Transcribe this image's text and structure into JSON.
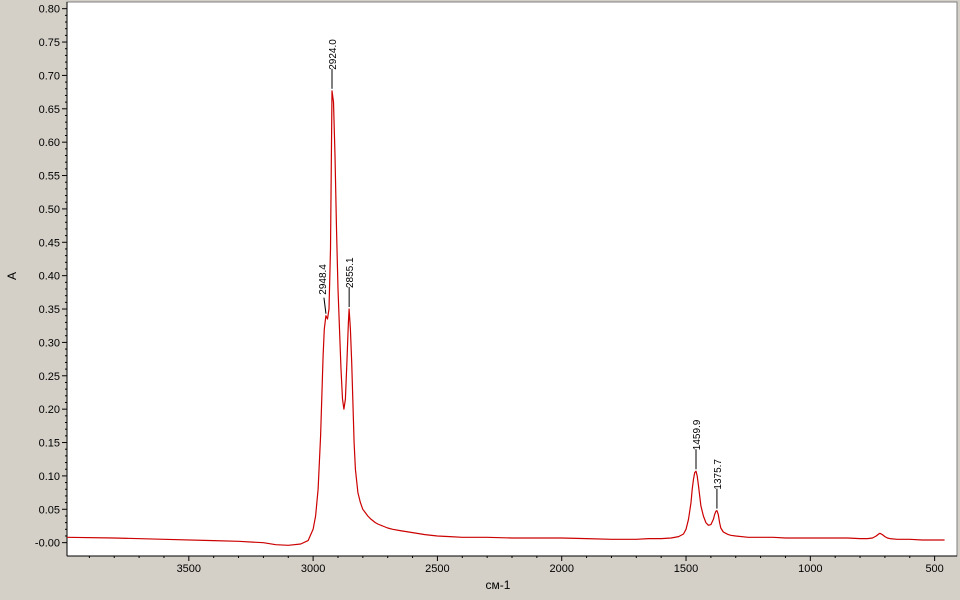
{
  "chart_data": {
    "type": "line",
    "title": "",
    "xlabel": "см-1",
    "ylabel": "A",
    "xlim": [
      3990,
      410
    ],
    "ylim": [
      -0.02,
      0.81
    ],
    "x_reversed": true,
    "grid": false,
    "x_ticks": [
      3500,
      3000,
      2500,
      2000,
      1500,
      1000,
      500
    ],
    "x_tick_labels": [
      "3500",
      "3000",
      "2500",
      "2000",
      "1500",
      "1000",
      "500"
    ],
    "y_ticks": [
      0.0,
      0.05,
      0.1,
      0.15,
      0.2,
      0.25,
      0.3,
      0.35,
      0.4,
      0.45,
      0.5,
      0.55,
      0.6,
      0.65,
      0.7,
      0.75,
      0.8
    ],
    "y_tick_labels": [
      "-0.00",
      "0.05",
      "0.10",
      "0.15",
      "0.20",
      "0.25",
      "0.30",
      "0.35",
      "0.40",
      "0.45",
      "0.50",
      "0.55",
      "0.60",
      "0.65",
      "0.70",
      "0.75",
      "0.80"
    ],
    "series": [
      {
        "color": "#cc0000",
        "x": [
          3990,
          3800,
          3600,
          3400,
          3300,
          3200,
          3150,
          3100,
          3050,
          3020,
          3000,
          2990,
          2980,
          2970,
          2960,
          2955,
          2948.4,
          2942,
          2936,
          2930,
          2924,
          2918,
          2912,
          2906,
          2900,
          2894,
          2888,
          2882,
          2876,
          2870,
          2864,
          2858,
          2855.1,
          2850,
          2845,
          2840,
          2835,
          2830,
          2820,
          2810,
          2800,
          2790,
          2780,
          2770,
          2760,
          2750,
          2740,
          2720,
          2700,
          2680,
          2650,
          2600,
          2550,
          2500,
          2450,
          2400,
          2300,
          2200,
          2100,
          2000,
          1900,
          1800,
          1750,
          1700,
          1650,
          1600,
          1560,
          1530,
          1510,
          1500,
          1490,
          1480,
          1475,
          1470,
          1465,
          1459.9,
          1455,
          1450,
          1445,
          1440,
          1430,
          1420,
          1410,
          1400,
          1390,
          1385,
          1380,
          1375.7,
          1370,
          1365,
          1360,
          1350,
          1340,
          1330,
          1320,
          1300,
          1250,
          1200,
          1150,
          1100,
          1050,
          1000,
          950,
          900,
          850,
          800,
          770,
          750,
          735,
          725,
          720,
          710,
          700,
          690,
          680,
          650,
          600,
          550,
          500,
          480,
          460
        ],
        "y": [
          0.008,
          0.007,
          0.005,
          0.003,
          0.002,
          0.0,
          -0.003,
          -0.004,
          -0.002,
          0.003,
          0.02,
          0.04,
          0.08,
          0.16,
          0.28,
          0.32,
          0.34,
          0.335,
          0.35,
          0.44,
          0.677,
          0.66,
          0.58,
          0.47,
          0.38,
          0.32,
          0.26,
          0.215,
          0.2,
          0.215,
          0.27,
          0.33,
          0.35,
          0.32,
          0.27,
          0.21,
          0.15,
          0.11,
          0.075,
          0.06,
          0.05,
          0.045,
          0.04,
          0.036,
          0.033,
          0.03,
          0.028,
          0.025,
          0.022,
          0.02,
          0.018,
          0.015,
          0.012,
          0.01,
          0.009,
          0.008,
          0.008,
          0.007,
          0.007,
          0.007,
          0.006,
          0.005,
          0.005,
          0.005,
          0.006,
          0.006,
          0.007,
          0.009,
          0.013,
          0.02,
          0.035,
          0.06,
          0.08,
          0.095,
          0.105,
          0.107,
          0.1,
          0.085,
          0.07,
          0.055,
          0.04,
          0.03,
          0.026,
          0.027,
          0.035,
          0.042,
          0.047,
          0.048,
          0.042,
          0.03,
          0.022,
          0.016,
          0.014,
          0.012,
          0.011,
          0.01,
          0.008,
          0.008,
          0.008,
          0.007,
          0.007,
          0.007,
          0.007,
          0.007,
          0.007,
          0.006,
          0.006,
          0.007,
          0.01,
          0.013,
          0.014,
          0.012,
          0.009,
          0.007,
          0.006,
          0.005,
          0.005,
          0.004,
          0.004,
          0.004,
          0.004
        ]
      }
    ],
    "peaks": [
      {
        "x": 2948.4,
        "y": 0.34,
        "label": "2948.4"
      },
      {
        "x": 2924.0,
        "y": 0.677,
        "label": "2924.0"
      },
      {
        "x": 2855.1,
        "y": 0.35,
        "label": "2855.1"
      },
      {
        "x": 1459.9,
        "y": 0.107,
        "label": "1459.9"
      },
      {
        "x": 1375.7,
        "y": 0.048,
        "label": "1375.7"
      }
    ],
    "colors": {
      "frame_background": "#d4d0c8",
      "plot_background": "#ffffff",
      "axis": "#808080",
      "series": "#cc0000",
      "peak_marker": "#000000"
    }
  }
}
